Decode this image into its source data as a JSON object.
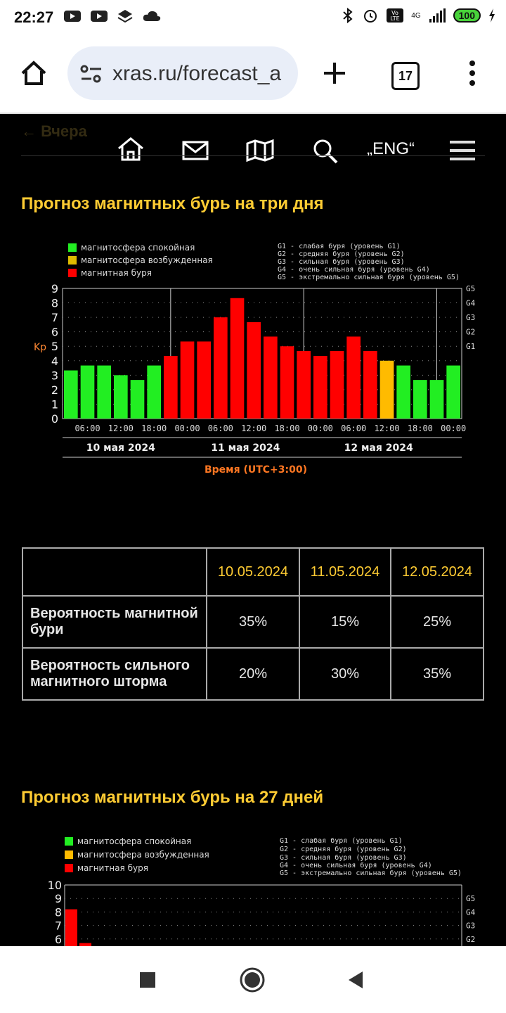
{
  "status_bar": {
    "time": "22:27",
    "battery": "100",
    "network": "4G"
  },
  "browser": {
    "url": "xras.ru/forecast_a",
    "tab_count": "17"
  },
  "site_nav": {
    "back_link": "← Вчера",
    "lang": "„ENG“"
  },
  "section1": {
    "title": "Прогноз магнитных бурь на три дня"
  },
  "legend": {
    "calm": "магнитосфера спокойная",
    "excited": "магнитосфера возбужденная",
    "storm": "магнитная буря",
    "g1": "G1 - слабая буря (уровень G1)",
    "g2": "G2 - средняя буря (уровень G2)",
    "g3": "G3 - сильная буря (уровень G3)",
    "g4": "G4 - очень сильная буря (уровень G4)",
    "g5": "G5 - экстремально сильная буря (уровень G5)"
  },
  "chart_data": [
    {
      "type": "bar",
      "ylabel": "Kp",
      "xlabel": "Время (UTC+3:00)",
      "ylim": [
        0,
        9
      ],
      "y_ticks": [
        "0",
        "1",
        "2",
        "3",
        "4",
        "5",
        "6",
        "7",
        "8",
        "9"
      ],
      "g_labels": [
        "G1",
        "G2",
        "G3",
        "G4",
        "G5"
      ],
      "x_ticks": [
        "06:00",
        "12:00",
        "18:00",
        "00:00",
        "06:00",
        "12:00",
        "18:00",
        "00:00",
        "06:00",
        "12:00",
        "18:00",
        "00:00"
      ],
      "days": [
        "10 мая 2024",
        "11 мая 2024",
        "12 мая 2024"
      ],
      "values": [
        3.33,
        3.67,
        3.67,
        3.0,
        2.67,
        3.67,
        4.33,
        5.33,
        5.33,
        7.0,
        8.33,
        6.67,
        5.67,
        5.0,
        4.67,
        4.33,
        4.67,
        5.67,
        4.67,
        4.0,
        3.67,
        2.67,
        2.67,
        3.67
      ],
      "levels": [
        "calm",
        "calm",
        "calm",
        "calm",
        "calm",
        "calm",
        "storm",
        "storm",
        "storm",
        "storm",
        "storm",
        "storm",
        "storm",
        "storm",
        "storm",
        "storm",
        "storm",
        "storm",
        "storm",
        "excited",
        "calm",
        "calm",
        "calm",
        "calm"
      ],
      "colors": {
        "calm": "#22ee22",
        "excited": "#ffbb00",
        "storm": "#ff0000"
      },
      "grid": true
    },
    {
      "type": "bar",
      "ylim": [
        0,
        10
      ],
      "y_ticks": [
        "6",
        "7",
        "8",
        "9",
        "10"
      ],
      "g_labels": [
        "G2",
        "G3",
        "G4",
        "G5"
      ],
      "values": [
        8.2,
        5.7
      ],
      "levels": [
        "storm",
        "storm"
      ],
      "colors": {
        "calm": "#22ee22",
        "excited": "#ffbb00",
        "storm": "#ff0000"
      },
      "grid": true
    }
  ],
  "forecast_table": {
    "dates": [
      "10.05.2024",
      "11.05.2024",
      "12.05.2024"
    ],
    "rows": [
      {
        "label": "Вероятность магнитной бури",
        "values": [
          "35%",
          "15%",
          "25%"
        ]
      },
      {
        "label": "Вероятность сильного магнитного шторма",
        "values": [
          "20%",
          "30%",
          "35%"
        ]
      }
    ]
  },
  "section2": {
    "title": "Прогноз магнитных бурь на 27 дней"
  },
  "icons": [
    "home-icon",
    "mail-icon",
    "map-icon",
    "search-icon",
    "menu-icon",
    "tune-icon",
    "plus-icon",
    "more-icon",
    "back-nav-icon",
    "home-nav-icon",
    "recents-nav-icon"
  ]
}
